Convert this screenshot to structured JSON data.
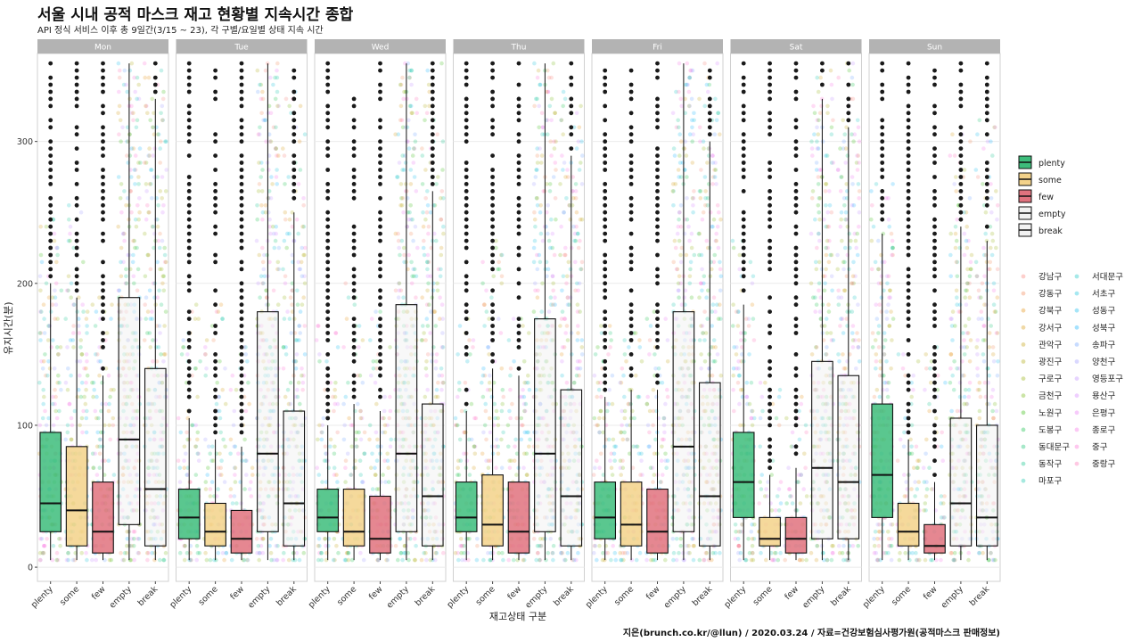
{
  "header": {
    "title": "서울 시내 공적 마스크 재고 현황별 지속시간 종합",
    "subtitle": "API 정식 서비스 이후 총 9일간(3/15 ~ 23), 각 구별/요일별 상태 지속 시간"
  },
  "caption": "지은(brunch.co.kr/@llun) / 2020.03.24 / 자료=건강보험심사평가원(공적마스크 판매정보)",
  "chart_data": {
    "type": "boxplot",
    "title": "서울 시내 공적 마스크 재고 현황별 지속시간 종합",
    "subtitle": "API 정식 서비스 이후 총 9일간(3/15 ~ 23), 각 구별/요일별 상태 지속 시간",
    "xlabel": "재고상태 구분",
    "ylabel": "유지시간(분)",
    "ylim": [
      -10,
      362
    ],
    "yticks": [
      0,
      100,
      200,
      300
    ],
    "categories": [
      "plenty",
      "some",
      "few",
      "empty",
      "break"
    ],
    "category_colors": {
      "plenty": "#3dbd7b",
      "some": "#f3d28a",
      "few": "#e0727e",
      "empty": "#f2f2f2",
      "break": "#f2f2f2"
    },
    "facets": [
      {
        "name": "Mon",
        "boxes": [
          {
            "cat": "plenty",
            "q1": 25,
            "median": 45,
            "q3": 95,
            "whisker_low": 5,
            "whisker_high": 200
          },
          {
            "cat": "some",
            "q1": 15,
            "median": 40,
            "q3": 85,
            "whisker_low": 5,
            "whisker_high": 190
          },
          {
            "cat": "few",
            "q1": 10,
            "median": 25,
            "q3": 60,
            "whisker_low": 5,
            "whisker_high": 135
          },
          {
            "cat": "empty",
            "q1": 30,
            "median": 90,
            "q3": 190,
            "whisker_low": 5,
            "whisker_high": 355
          },
          {
            "cat": "break",
            "q1": 15,
            "median": 55,
            "q3": 140,
            "whisker_low": 5,
            "whisker_high": 330
          }
        ]
      },
      {
        "name": "Tue",
        "boxes": [
          {
            "cat": "plenty",
            "q1": 20,
            "median": 35,
            "q3": 55,
            "whisker_low": 5,
            "whisker_high": 105
          },
          {
            "cat": "some",
            "q1": 15,
            "median": 25,
            "q3": 45,
            "whisker_low": 5,
            "whisker_high": 90
          },
          {
            "cat": "few",
            "q1": 10,
            "median": 20,
            "q3": 40,
            "whisker_low": 5,
            "whisker_high": 85
          },
          {
            "cat": "empty",
            "q1": 25,
            "median": 80,
            "q3": 180,
            "whisker_low": 5,
            "whisker_high": 355
          },
          {
            "cat": "break",
            "q1": 15,
            "median": 45,
            "q3": 110,
            "whisker_low": 5,
            "whisker_high": 250
          }
        ]
      },
      {
        "name": "Wed",
        "boxes": [
          {
            "cat": "plenty",
            "q1": 25,
            "median": 35,
            "q3": 55,
            "whisker_low": 5,
            "whisker_high": 100
          },
          {
            "cat": "some",
            "q1": 15,
            "median": 25,
            "q3": 55,
            "whisker_low": 5,
            "whisker_high": 115
          },
          {
            "cat": "few",
            "q1": 10,
            "median": 20,
            "q3": 50,
            "whisker_low": 5,
            "whisker_high": 110
          },
          {
            "cat": "empty",
            "q1": 25,
            "median": 80,
            "q3": 185,
            "whisker_low": 5,
            "whisker_high": 355
          },
          {
            "cat": "break",
            "q1": 15,
            "median": 50,
            "q3": 115,
            "whisker_low": 5,
            "whisker_high": 265
          }
        ]
      },
      {
        "name": "Thu",
        "boxes": [
          {
            "cat": "plenty",
            "q1": 25,
            "median": 35,
            "q3": 60,
            "whisker_low": 5,
            "whisker_high": 110
          },
          {
            "cat": "some",
            "q1": 15,
            "median": 30,
            "q3": 65,
            "whisker_low": 5,
            "whisker_high": 140
          },
          {
            "cat": "few",
            "q1": 10,
            "median": 25,
            "q3": 60,
            "whisker_low": 5,
            "whisker_high": 135
          },
          {
            "cat": "empty",
            "q1": 25,
            "median": 80,
            "q3": 175,
            "whisker_low": 5,
            "whisker_high": 355
          },
          {
            "cat": "break",
            "q1": 15,
            "median": 50,
            "q3": 125,
            "whisker_low": 5,
            "whisker_high": 290
          }
        ]
      },
      {
        "name": "Fri",
        "boxes": [
          {
            "cat": "plenty",
            "q1": 20,
            "median": 35,
            "q3": 60,
            "whisker_low": 5,
            "whisker_high": 120
          },
          {
            "cat": "some",
            "q1": 15,
            "median": 30,
            "q3": 60,
            "whisker_low": 5,
            "whisker_high": 125
          },
          {
            "cat": "few",
            "q1": 10,
            "median": 25,
            "q3": 55,
            "whisker_low": 5,
            "whisker_high": 125
          },
          {
            "cat": "empty",
            "q1": 25,
            "median": 85,
            "q3": 180,
            "whisker_low": 5,
            "whisker_high": 355
          },
          {
            "cat": "break",
            "q1": 15,
            "median": 50,
            "q3": 130,
            "whisker_low": 5,
            "whisker_high": 300
          }
        ]
      },
      {
        "name": "Sat",
        "boxes": [
          {
            "cat": "plenty",
            "q1": 35,
            "median": 60,
            "q3": 95,
            "whisker_low": 5,
            "whisker_high": 185
          },
          {
            "cat": "some",
            "q1": 15,
            "median": 20,
            "q3": 35,
            "whisker_low": 5,
            "whisker_high": 65
          },
          {
            "cat": "few",
            "q1": 10,
            "median": 20,
            "q3": 35,
            "whisker_low": 5,
            "whisker_high": 70
          },
          {
            "cat": "empty",
            "q1": 20,
            "median": 70,
            "q3": 145,
            "whisker_low": 5,
            "whisker_high": 330
          },
          {
            "cat": "break",
            "q1": 20,
            "median": 60,
            "q3": 135,
            "whisker_low": 5,
            "whisker_high": 310
          }
        ]
      },
      {
        "name": "Sun",
        "boxes": [
          {
            "cat": "plenty",
            "q1": 35,
            "median": 65,
            "q3": 115,
            "whisker_low": 5,
            "whisker_high": 235
          },
          {
            "cat": "some",
            "q1": 15,
            "median": 25,
            "q3": 45,
            "whisker_low": 5,
            "whisker_high": 90
          },
          {
            "cat": "few",
            "q1": 10,
            "median": 15,
            "q3": 30,
            "whisker_low": 5,
            "whisker_high": 60
          },
          {
            "cat": "empty",
            "q1": 15,
            "median": 45,
            "q3": 105,
            "whisker_low": 5,
            "whisker_high": 240
          },
          {
            "cat": "break",
            "q1": 15,
            "median": 35,
            "q3": 100,
            "whisker_low": 5,
            "whisker_high": 230
          }
        ]
      }
    ],
    "legend_fill": {
      "position": "right",
      "entries": [
        "plenty",
        "some",
        "few",
        "empty",
        "break"
      ]
    },
    "legend_districts": {
      "position": "right",
      "entries": [
        {
          "name": "강남구",
          "color": "#f8766d"
        },
        {
          "name": "강동구",
          "color": "#f07e4b"
        },
        {
          "name": "강북구",
          "color": "#e38900"
        },
        {
          "name": "강서구",
          "color": "#d39200"
        },
        {
          "name": "관악구",
          "color": "#c09b00"
        },
        {
          "name": "광진구",
          "color": "#a9a400"
        },
        {
          "name": "구로구",
          "color": "#8fab00"
        },
        {
          "name": "금천구",
          "color": "#6bb100"
        },
        {
          "name": "노원구",
          "color": "#2ab600"
        },
        {
          "name": "도봉구",
          "color": "#00ba38"
        },
        {
          "name": "동대문구",
          "color": "#00bd63"
        },
        {
          "name": "동작구",
          "color": "#00bf84"
        },
        {
          "name": "마포구",
          "color": "#00c0a2"
        },
        {
          "name": "서대문구",
          "color": "#00c0bd"
        },
        {
          "name": "서초구",
          "color": "#00bcd6"
        },
        {
          "name": "성동구",
          "color": "#00b5ec"
        },
        {
          "name": "성북구",
          "color": "#00abfd"
        },
        {
          "name": "송파구",
          "color": "#619cff"
        },
        {
          "name": "양천구",
          "color": "#9590ff"
        },
        {
          "name": "영등포구",
          "color": "#b983ff"
        },
        {
          "name": "용산구",
          "color": "#d277ff"
        },
        {
          "name": "은평구",
          "color": "#e76bf3"
        },
        {
          "name": "종로구",
          "color": "#f564e3"
        },
        {
          "name": "중구",
          "color": "#fd61d1"
        },
        {
          "name": "중랑구",
          "color": "#ff64b0"
        }
      ]
    }
  }
}
